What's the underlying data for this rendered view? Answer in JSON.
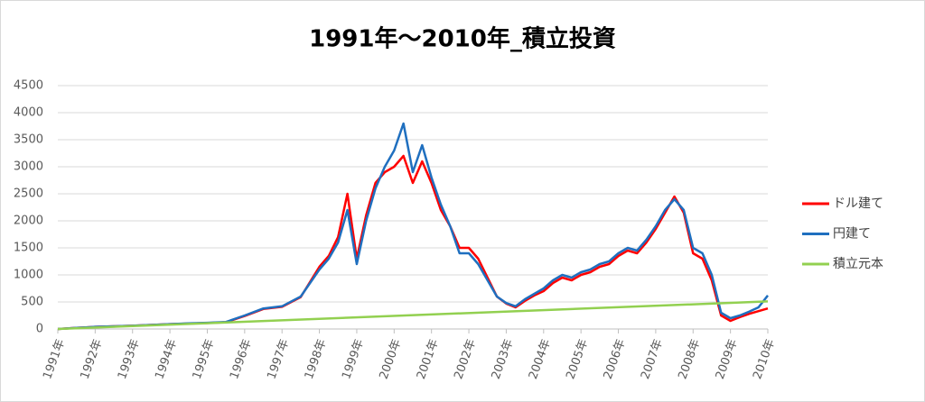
{
  "chart_data": {
    "type": "line",
    "title": "1991年～2010年_積立投資",
    "xlim": [
      1991,
      2010
    ],
    "xticks": [
      {
        "value": 1991,
        "label": "1991年"
      },
      {
        "value": 1992,
        "label": "1992年"
      },
      {
        "value": 1993,
        "label": "1993年"
      },
      {
        "value": 1994,
        "label": "1994年"
      },
      {
        "value": 1995,
        "label": "1995年"
      },
      {
        "value": 1996,
        "label": "1996年"
      },
      {
        "value": 1997,
        "label": "1997年"
      },
      {
        "value": 1998,
        "label": "1998年"
      },
      {
        "value": 1999,
        "label": "1999年"
      },
      {
        "value": 2000,
        "label": "2000年"
      },
      {
        "value": 2001,
        "label": "2001年"
      },
      {
        "value": 2002,
        "label": "2002年"
      },
      {
        "value": 2003,
        "label": "2003年"
      },
      {
        "value": 2004,
        "label": "2004年"
      },
      {
        "value": 2005,
        "label": "2005年"
      },
      {
        "value": 2006,
        "label": "2006年"
      },
      {
        "value": 2007,
        "label": "2007年"
      },
      {
        "value": 2008,
        "label": "2008年"
      },
      {
        "value": 2009,
        "label": "2009年"
      },
      {
        "value": 2010,
        "label": "2010年"
      }
    ],
    "ylim": [
      0,
      4500
    ],
    "yticks": [
      0,
      500,
      1000,
      1500,
      2000,
      2500,
      3000,
      3500,
      4000,
      4500
    ],
    "grid": true,
    "legend": "right",
    "series": [
      {
        "name": "ドル建て",
        "color": "#ff0000",
        "x": [
          1991,
          1991.25,
          1991.5,
          1991.75,
          1992,
          1992.5,
          1993,
          1993.5,
          1994,
          1994.5,
          1995,
          1995.5,
          1996,
          1996.5,
          1997,
          1997.5,
          1998,
          1998.25,
          1998.5,
          1998.75,
          1999,
          1999.25,
          1999.5,
          1999.75,
          2000,
          2000.25,
          2000.5,
          2000.75,
          2001,
          2001.25,
          2001.5,
          2001.75,
          2002,
          2002.25,
          2002.5,
          2002.75,
          2003,
          2003.25,
          2003.5,
          2003.75,
          2004,
          2004.25,
          2004.5,
          2004.75,
          2005,
          2005.25,
          2005.5,
          2005.75,
          2006,
          2006.25,
          2006.5,
          2006.75,
          2007,
          2007.25,
          2007.5,
          2007.75,
          2008,
          2008.25,
          2008.5,
          2008.75,
          2009,
          2009.25,
          2009.5,
          2009.75,
          2010
        ],
        "values": [
          0,
          10,
          20,
          30,
          40,
          50,
          60,
          75,
          90,
          100,
          110,
          125,
          240,
          370,
          410,
          590,
          1150,
          1350,
          1700,
          2500,
          1300,
          2100,
          2700,
          2900,
          3000,
          3200,
          2700,
          3100,
          2700,
          2200,
          1900,
          1500,
          1500,
          1300,
          950,
          600,
          470,
          400,
          520,
          620,
          700,
          850,
          950,
          900,
          1000,
          1050,
          1150,
          1200,
          1350,
          1450,
          1400,
          1600,
          1850,
          2150,
          2450,
          2150,
          1400,
          1300,
          900,
          250,
          150,
          220,
          280,
          330,
          380
        ]
      },
      {
        "name": "円建て",
        "color": "#1f6fbf",
        "x": [
          1991,
          1991.25,
          1991.5,
          1991.75,
          1992,
          1992.5,
          1993,
          1993.5,
          1994,
          1994.5,
          1995,
          1995.5,
          1996,
          1996.5,
          1997,
          1997.5,
          1998,
          1998.25,
          1998.5,
          1998.75,
          1999,
          1999.25,
          1999.5,
          1999.75,
          2000,
          2000.25,
          2000.5,
          2000.75,
          2001,
          2001.25,
          2001.5,
          2001.75,
          2002,
          2002.25,
          2002.5,
          2002.75,
          2003,
          2003.25,
          2003.5,
          2003.75,
          2004,
          2004.25,
          2004.5,
          2004.75,
          2005,
          2005.25,
          2005.5,
          2005.75,
          2006,
          2006.25,
          2006.5,
          2006.75,
          2007,
          2007.25,
          2007.5,
          2007.75,
          2008,
          2008.25,
          2008.5,
          2008.75,
          2009,
          2009.25,
          2009.5,
          2009.75,
          2010
        ],
        "values": [
          0,
          10,
          20,
          30,
          40,
          50,
          60,
          75,
          90,
          105,
          115,
          130,
          250,
          380,
          420,
          600,
          1100,
          1300,
          1600,
          2200,
          1200,
          2000,
          2600,
          3000,
          3300,
          3800,
          2900,
          3400,
          2800,
          2300,
          1900,
          1400,
          1400,
          1200,
          900,
          600,
          480,
          420,
          550,
          650,
          750,
          900,
          1000,
          950,
          1050,
          1100,
          1200,
          1250,
          1400,
          1500,
          1450,
          1650,
          1900,
          2200,
          2400,
          2200,
          1500,
          1400,
          1000,
          300,
          200,
          250,
          320,
          400,
          620
        ]
      },
      {
        "name": "積立元本",
        "color": "#92d050",
        "x": [
          1991,
          2010
        ],
        "values": [
          0,
          510
        ]
      }
    ]
  }
}
